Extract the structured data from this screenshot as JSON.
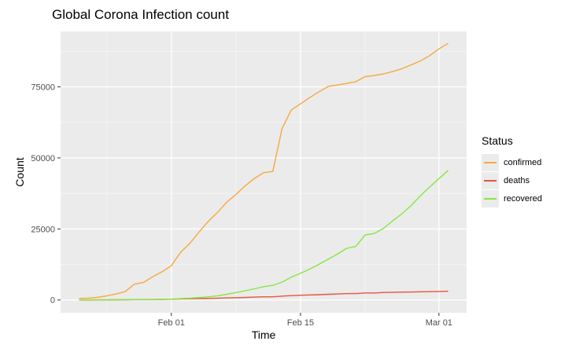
{
  "chart_data": {
    "type": "line",
    "title": "Global Corona Infection count",
    "xlabel": "Time",
    "ylabel": "Count",
    "x_tick_labels": [
      "Feb 01",
      "Feb 15",
      "Mar 01"
    ],
    "y_tick_labels": [
      "0",
      "25000",
      "50000",
      "75000"
    ],
    "y_ticks": [
      0,
      25000,
      50000,
      75000
    ],
    "ylim": [
      -4500,
      94500
    ],
    "xlim": [
      "2020-01-20",
      "2020-03-04"
    ],
    "grid": true,
    "legend_title": "Status",
    "legend_position": "right",
    "x": [
      "2020-01-22",
      "2020-01-23",
      "2020-01-24",
      "2020-01-25",
      "2020-01-26",
      "2020-01-27",
      "2020-01-28",
      "2020-01-29",
      "2020-01-30",
      "2020-01-31",
      "2020-02-01",
      "2020-02-02",
      "2020-02-03",
      "2020-02-04",
      "2020-02-05",
      "2020-02-06",
      "2020-02-07",
      "2020-02-08",
      "2020-02-09",
      "2020-02-10",
      "2020-02-11",
      "2020-02-12",
      "2020-02-13",
      "2020-02-14",
      "2020-02-15",
      "2020-02-16",
      "2020-02-17",
      "2020-02-18",
      "2020-02-19",
      "2020-02-20",
      "2020-02-21",
      "2020-02-22",
      "2020-02-23",
      "2020-02-24",
      "2020-02-25",
      "2020-02-26",
      "2020-02-27",
      "2020-02-28",
      "2020-02-29",
      "2020-03-01",
      "2020-03-02"
    ],
    "series": [
      {
        "name": "confirmed",
        "color": "#F5A93E",
        "values": [
          555,
          654,
          941,
          1434,
          2118,
          2927,
          5578,
          6166,
          8234,
          9927,
          12038,
          16787,
          19887,
          23898,
          27643,
          30802,
          34395,
          37129,
          40160,
          42769,
          44803,
          45222,
          60370,
          66887,
          69032,
          71226,
          73260,
          75138,
          75641,
          76199,
          76843,
          78599,
          78985,
          79570,
          80415,
          81397,
          82756,
          84124,
          86013,
          88371,
          90309
        ]
      },
      {
        "name": "deaths",
        "color": "#E5553A",
        "values": [
          17,
          18,
          26,
          42,
          56,
          82,
          131,
          133,
          171,
          213,
          259,
          362,
          426,
          492,
          564,
          634,
          719,
          806,
          906,
          1013,
          1113,
          1118,
          1371,
          1523,
          1666,
          1770,
          1868,
          2007,
          2122,
          2247,
          2251,
          2458,
          2469,
          2629,
          2708,
          2770,
          2814,
          2872,
          2941,
          2996,
          3085
        ]
      },
      {
        "name": "recovered",
        "color": "#86E740",
        "values": [
          28,
          30,
          36,
          39,
          52,
          61,
          107,
          126,
          143,
          222,
          284,
          472,
          623,
          852,
          1124,
          1487,
          2011,
          2616,
          3244,
          3946,
          4683,
          5150,
          6295,
          8058,
          9395,
          10865,
          12583,
          14352,
          16121,
          18177,
          18890,
          22886,
          23394,
          25227,
          27905,
          30384,
          33277,
          36711,
          39782,
          42716,
          45602
        ]
      }
    ]
  }
}
